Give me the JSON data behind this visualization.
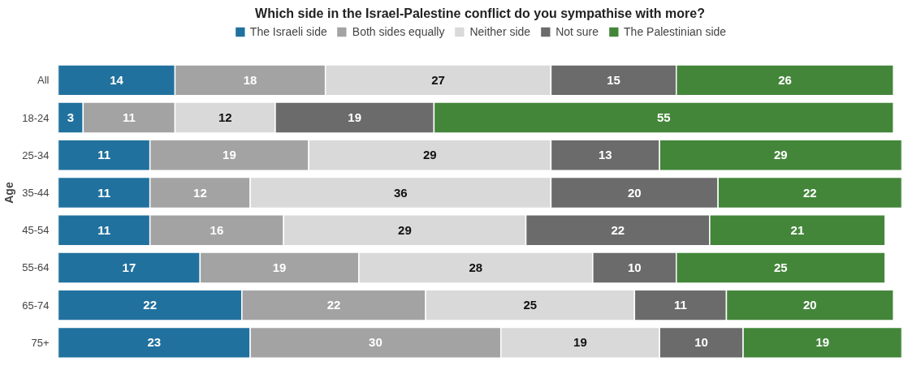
{
  "chart_data": {
    "type": "bar",
    "orientation": "horizontal",
    "stacked": true,
    "data_labels": true,
    "legend": "top",
    "tick_labels": "y",
    "title": "Which side in the Israel-Palestine conflict do you sympathise with more?",
    "ylabel": "Age",
    "categories": [
      "All",
      "18-24",
      "25-34",
      "35-44",
      "45-54",
      "55-64",
      "65-74",
      "75+"
    ],
    "series": [
      {
        "name": "The Israeli side",
        "color": "#21719e",
        "values": [
          14,
          3,
          11,
          11,
          11,
          17,
          22,
          23
        ]
      },
      {
        "name": "Both sides equally",
        "color": "#a3a3a3",
        "values": [
          18,
          11,
          19,
          12,
          16,
          19,
          22,
          30
        ]
      },
      {
        "name": "Neither side",
        "color": "#d9d9d9",
        "values": [
          27,
          12,
          29,
          36,
          29,
          28,
          25,
          19
        ]
      },
      {
        "name": "Not sure",
        "color": "#6b6b6b",
        "values": [
          15,
          19,
          13,
          20,
          22,
          10,
          11,
          10
        ]
      },
      {
        "name": "The Palestinian side",
        "color": "#43863a",
        "values": [
          26,
          55,
          29,
          22,
          21,
          25,
          20,
          19
        ]
      }
    ]
  }
}
